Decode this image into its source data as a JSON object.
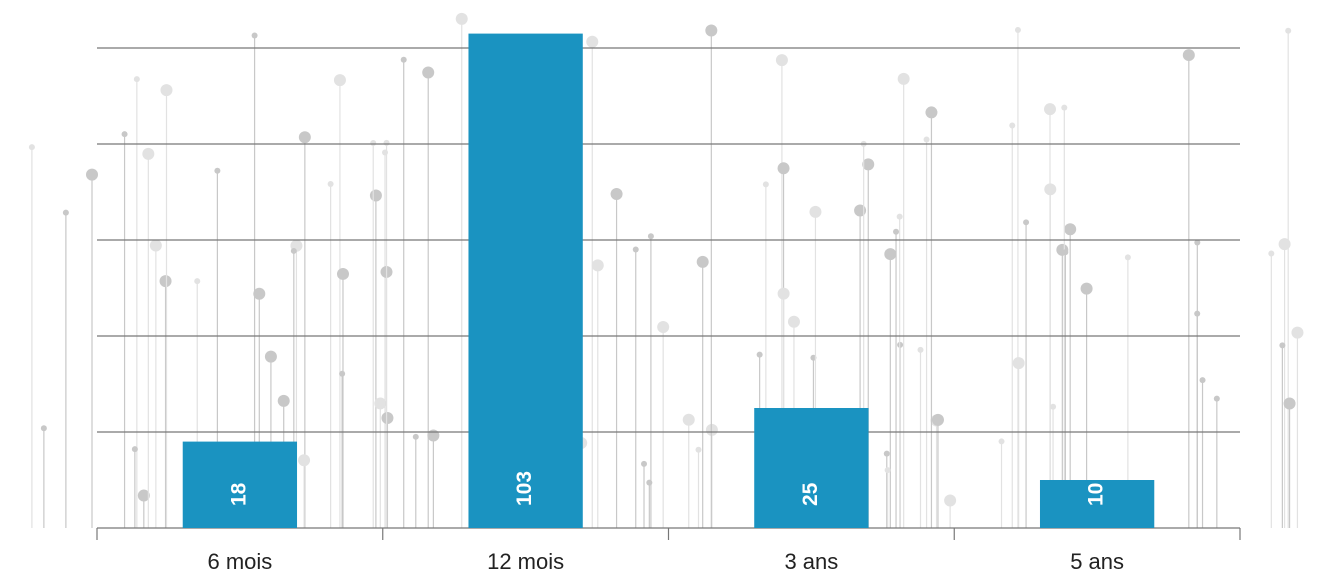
{
  "chart_data": {
    "type": "bar",
    "categories": [
      "6 mois",
      "12 mois",
      "3 ans",
      "5 ans"
    ],
    "values": [
      18,
      103,
      25,
      10
    ],
    "color": "#1a93c1",
    "ylim": [
      0,
      110
    ],
    "yticks": [
      0,
      20,
      40,
      60,
      80,
      100
    ],
    "grid": true
  }
}
